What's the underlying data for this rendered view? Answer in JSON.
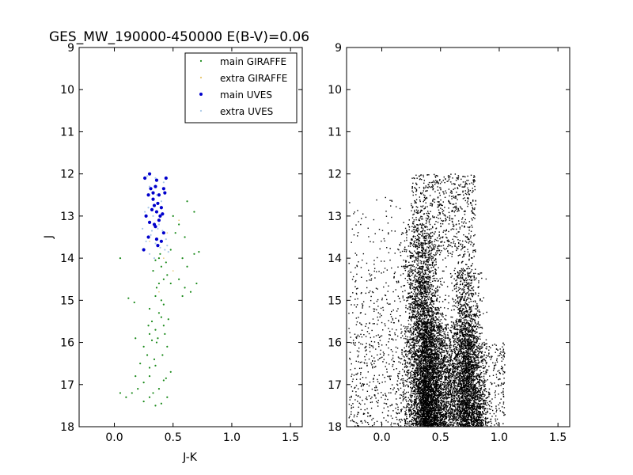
{
  "figure": {
    "title": "GES_MW_190000-450000 E(B-V)=0.06"
  },
  "chart_data": [
    {
      "type": "scatter",
      "panel": "left",
      "title": "GES_MW_190000-450000 E(B-V)=0.06",
      "xlabel": "J-K",
      "ylabel": "J",
      "xlim": [
        -0.3,
        1.6
      ],
      "ylim": [
        18,
        9
      ],
      "y_inverted": true,
      "xticks": [
        0.0,
        0.5,
        1.0,
        1.5
      ],
      "xtick_labels": [
        "0.0",
        "0.5",
        "1.0",
        "1.5"
      ],
      "yticks": [
        9,
        10,
        11,
        12,
        13,
        14,
        15,
        16,
        17,
        18
      ],
      "ytick_labels": [
        "9",
        "10",
        "11",
        "12",
        "13",
        "14",
        "15",
        "16",
        "17",
        "18"
      ],
      "legend_position": "top-right",
      "series": [
        {
          "name": "main GIRAFFE",
          "color": "#1a8a1a",
          "marker": "small-dot",
          "points": [
            [
              0.25,
              17.4
            ],
            [
              0.1,
              17.3
            ],
            [
              0.05,
              17.2
            ],
            [
              0.15,
              17.2
            ],
            [
              0.3,
              17.3
            ],
            [
              0.2,
              17.1
            ],
            [
              0.25,
              16.95
            ],
            [
              0.18,
              16.8
            ],
            [
              0.3,
              16.6
            ],
            [
              0.22,
              16.5
            ],
            [
              0.28,
              16.3
            ],
            [
              0.25,
              16.1
            ],
            [
              0.18,
              15.9
            ],
            [
              0.3,
              15.8
            ],
            [
              0.35,
              15.7
            ],
            [
              0.32,
              15.5
            ],
            [
              0.38,
              15.3
            ],
            [
              0.3,
              15.2
            ],
            [
              0.4,
              15.0
            ],
            [
              0.35,
              14.9
            ],
            [
              0.38,
              14.6
            ],
            [
              0.42,
              14.5
            ],
            [
              0.45,
              14.4
            ],
            [
              0.4,
              14.2
            ],
            [
              0.38,
              14.0
            ],
            [
              0.35,
              14.05
            ],
            [
              0.05,
              14.0
            ],
            [
              0.12,
              14.95
            ],
            [
              0.17,
              15.05
            ],
            [
              0.48,
              14.6
            ],
            [
              0.6,
              14.7
            ],
            [
              0.65,
              14.8
            ],
            [
              0.55,
              14.5
            ],
            [
              0.7,
              14.6
            ],
            [
              0.62,
              14.2
            ],
            [
              0.58,
              14.0
            ],
            [
              0.68,
              13.9
            ],
            [
              0.72,
              13.85
            ],
            [
              0.6,
              13.5
            ],
            [
              0.55,
              13.2
            ],
            [
              0.68,
              12.9
            ],
            [
              0.62,
              12.65
            ],
            [
              0.5,
              13.0
            ],
            [
              0.52,
              13.4
            ],
            [
              0.48,
              13.8
            ],
            [
              0.58,
              14.9
            ],
            [
              0.42,
              15.6
            ],
            [
              0.45,
              16.1
            ],
            [
              0.48,
              16.7
            ],
            [
              0.42,
              16.9
            ],
            [
              0.38,
              17.1
            ],
            [
              0.45,
              17.3
            ],
            [
              0.4,
              17.45
            ],
            [
              0.35,
              17.5
            ],
            [
              0.33,
              17.2
            ],
            [
              0.3,
              16.8
            ],
            [
              0.34,
              16.4
            ],
            [
              0.36,
              16.0
            ],
            [
              0.4,
              15.4
            ],
            [
              0.42,
              15.1
            ],
            [
              0.36,
              14.7
            ],
            [
              0.33,
              14.3
            ],
            [
              0.44,
              14.1
            ],
            [
              0.39,
              13.9
            ],
            [
              0.41,
              16.3
            ],
            [
              0.37,
              15.9
            ],
            [
              0.43,
              15.8
            ],
            [
              0.32,
              15.95
            ],
            [
              0.46,
              15.45
            ],
            [
              0.29,
              15.6
            ],
            [
              0.35,
              16.55
            ],
            [
              0.44,
              16.85
            ]
          ]
        },
        {
          "name": "extra GIRAFFE",
          "color": "#e8c56a",
          "marker": "tiny-dot",
          "points": [
            [
              0.3,
              13.6
            ],
            [
              0.45,
              13.4
            ],
            [
              0.55,
              13.1
            ],
            [
              0.42,
              14.0
            ],
            [
              0.5,
              14.3
            ],
            [
              0.38,
              14.8
            ]
          ]
        },
        {
          "name": "main UVES",
          "color": "#0000cc",
          "marker": "dot",
          "points": [
            [
              0.3,
              12.0
            ],
            [
              0.26,
              12.1
            ],
            [
              0.44,
              12.1
            ],
            [
              0.36,
              12.15
            ],
            [
              0.35,
              12.3
            ],
            [
              0.31,
              12.35
            ],
            [
              0.42,
              12.35
            ],
            [
              0.29,
              12.5
            ],
            [
              0.38,
              12.5
            ],
            [
              0.43,
              12.45
            ],
            [
              0.33,
              12.6
            ],
            [
              0.37,
              12.7
            ],
            [
              0.34,
              12.75
            ],
            [
              0.4,
              12.8
            ],
            [
              0.32,
              12.85
            ],
            [
              0.36,
              12.9
            ],
            [
              0.27,
              13.0
            ],
            [
              0.41,
              12.95
            ],
            [
              0.3,
              13.15
            ],
            [
              0.38,
              13.1
            ],
            [
              0.34,
              13.2
            ],
            [
              0.42,
              13.4
            ],
            [
              0.29,
              13.5
            ],
            [
              0.36,
              13.55
            ],
            [
              0.4,
              13.6
            ],
            [
              0.25,
              13.8
            ],
            [
              0.37,
              13.7
            ],
            [
              0.35,
              13.25
            ],
            [
              0.39,
              13.0
            ],
            [
              0.33,
              12.45
            ]
          ]
        },
        {
          "name": "extra UVES",
          "color": "#a8c8e8",
          "marker": "small-dot",
          "points": [
            [
              0.28,
              12.05
            ],
            [
              0.3,
              12.3
            ],
            [
              0.36,
              12.5
            ],
            [
              0.4,
              12.65
            ],
            [
              0.29,
              12.8
            ],
            [
              0.33,
              13.0
            ],
            [
              0.37,
              13.3
            ],
            [
              0.31,
              13.45
            ],
            [
              0.27,
              13.6
            ],
            [
              0.35,
              13.65
            ],
            [
              0.39,
              13.75
            ],
            [
              0.43,
              13.8
            ],
            [
              0.45,
              13.7
            ],
            [
              0.44,
              13.55
            ],
            [
              0.41,
              13.35
            ],
            [
              0.38,
              13.2
            ],
            [
              0.32,
              13.35
            ],
            [
              0.3,
              13.9
            ],
            [
              0.46,
              13.85
            ],
            [
              0.34,
              14.0
            ],
            [
              0.24,
              13.3
            ],
            [
              0.26,
              12.9
            ],
            [
              0.42,
              12.2
            ],
            [
              0.35,
              12.1
            ]
          ]
        }
      ]
    },
    {
      "type": "scatter",
      "panel": "right",
      "xlim": [
        -0.3,
        1.6
      ],
      "ylim": [
        18,
        9
      ],
      "y_inverted": true,
      "xticks": [
        0.0,
        0.5,
        1.0,
        1.5
      ],
      "xtick_labels": [
        "0.0",
        "0.5",
        "1.0",
        "1.5"
      ],
      "yticks": [
        9,
        10,
        11,
        12,
        13,
        14,
        15,
        16,
        17,
        18
      ],
      "ytick_labels": [
        "9",
        "10",
        "11",
        "12",
        "13",
        "14",
        "15",
        "16",
        "17",
        "18"
      ],
      "color": "#000000",
      "distribution": {
        "J_range": [
          12.0,
          18.0
        ],
        "main_sequence_branch": {
          "jk_center_at_J18": 0.38,
          "jk_center_at_J12": 0.32,
          "jk_width": 0.08
        },
        "giant_branch": {
          "jk_center_at_J18": 0.78,
          "jk_center_at_J15": 0.72,
          "jk_width": 0.06
        },
        "cloud_between_branches": {
          "jk_range": [
            0.35,
            0.75
          ],
          "J_range": [
            15.5,
            18.0
          ]
        },
        "sparse_field_blue": {
          "jk_range": [
            -0.28,
            0.25
          ],
          "J_range": [
            12.1,
            18.0
          ]
        },
        "sparse_field_red": {
          "jk_range": [
            0.8,
            1.05
          ],
          "J_range": [
            16.0,
            18.0
          ]
        },
        "upper_band": {
          "jk_range": [
            0.25,
            0.8
          ],
          "J_range": [
            12.0,
            14.0
          ]
        }
      }
    }
  ]
}
